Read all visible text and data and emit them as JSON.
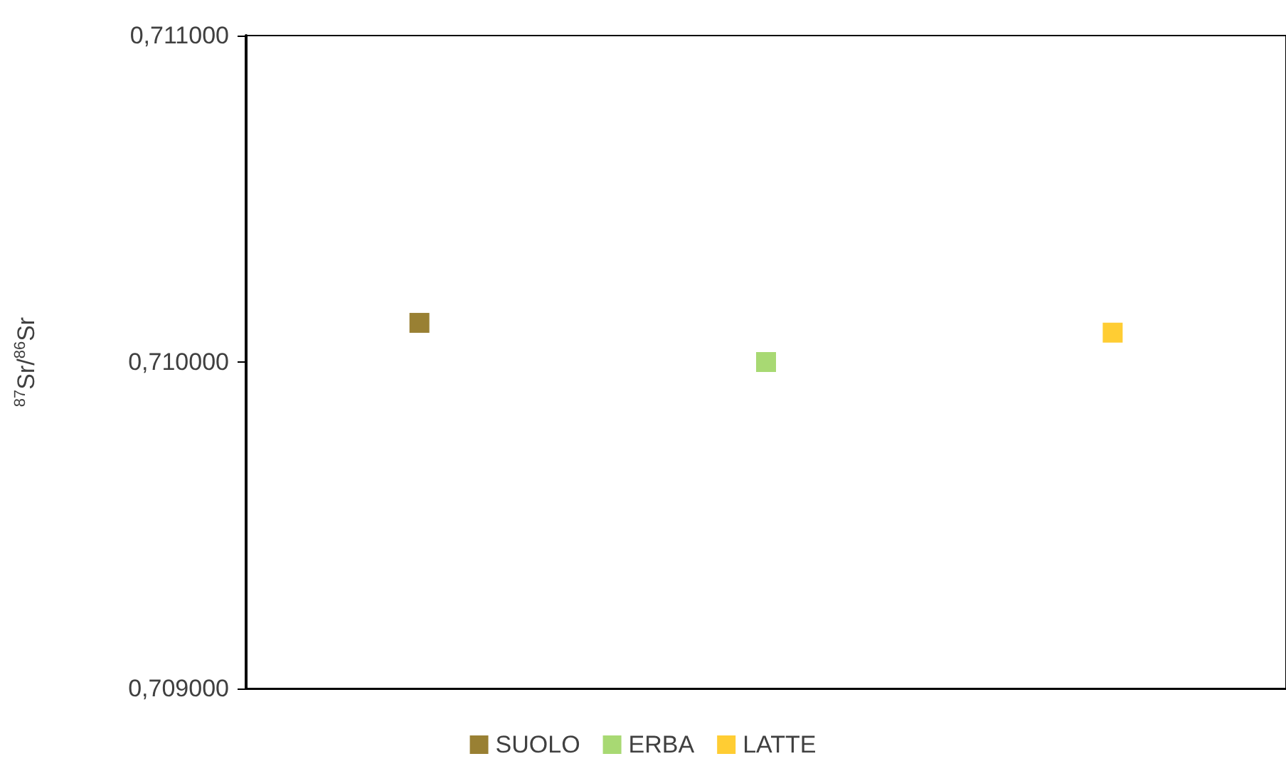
{
  "chart_data": {
    "type": "scatter",
    "ylabel": "$^{87}$Sr/$^{86}$Sr",
    "categories": [
      null,
      null,
      null
    ],
    "series": [
      {
        "name": "SUOLO",
        "color": "#7f6000",
        "values": [
          0.71012,
          null,
          null
        ]
      },
      {
        "name": "ERBA",
        "color": "#92d050",
        "values": [
          null,
          0.71,
          null
        ]
      },
      {
        "name": "LATTE",
        "color": "#ffc000",
        "values": [
          null,
          null,
          0.71009
        ]
      }
    ],
    "ylim": [
      0.709,
      0.711
    ],
    "yticks": [
      {
        "value": 0.709,
        "label": "0,709000"
      },
      {
        "value": 0.71,
        "label": "0,710000"
      },
      {
        "value": 0.711,
        "label": "0,711000"
      }
    ],
    "marker": "square",
    "legend": "bottom",
    "tick_labels": "y"
  }
}
